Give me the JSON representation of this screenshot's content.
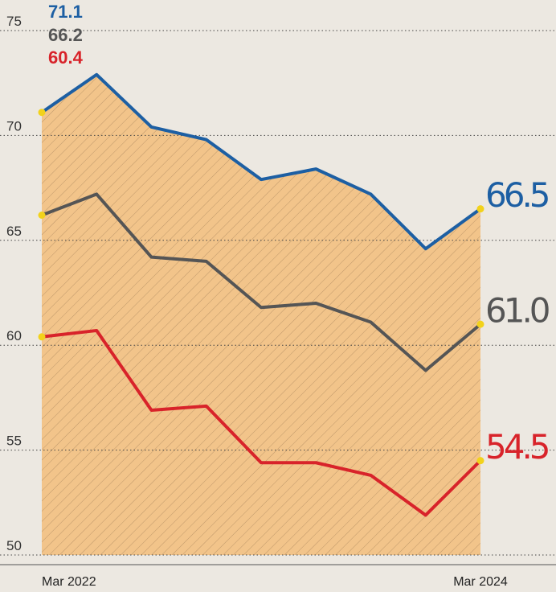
{
  "chart_data": {
    "type": "line",
    "categories": [
      "Mar 2022",
      null,
      null,
      null,
      null,
      null,
      null,
      null,
      "Mar 2024"
    ],
    "series": [
      {
        "name": null,
        "color": "#1d5fa3",
        "values": [
          71.1,
          72.9,
          70.4,
          69.8,
          67.9,
          68.4,
          67.2,
          64.6,
          66.5
        ],
        "value_labels": [
          "71.1",
          null,
          null,
          null,
          null,
          null,
          null,
          null,
          "66.5"
        ]
      },
      {
        "name": null,
        "color": "#555555",
        "values": [
          66.2,
          67.2,
          64.2,
          64.0,
          61.8,
          62.0,
          61.1,
          58.8,
          61.0
        ],
        "value_labels": [
          "66.2",
          null,
          null,
          null,
          null,
          null,
          null,
          null,
          "61.0"
        ]
      },
      {
        "name": null,
        "color": "#d8232a",
        "values": [
          60.4,
          60.7,
          56.9,
          57.1,
          54.4,
          54.4,
          53.8,
          51.9,
          54.5
        ],
        "value_labels": [
          "60.4",
          null,
          null,
          null,
          null,
          null,
          null,
          null,
          "54.5"
        ]
      }
    ],
    "area_color": "#f2c48a",
    "ylim": [
      50,
      75
    ],
    "yticks": [
      50,
      55,
      60,
      65,
      70,
      75
    ],
    "grid": true
  }
}
